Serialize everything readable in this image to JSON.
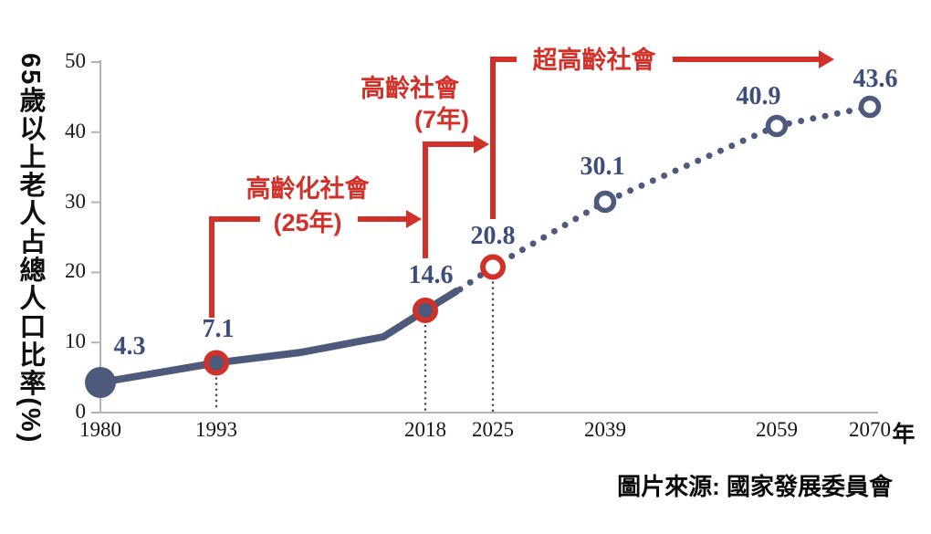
{
  "chart_data": {
    "type": "line",
    "x": [
      1980,
      1993,
      2018,
      2025,
      2039,
      2059,
      2070
    ],
    "values": [
      4.3,
      7.1,
      14.6,
      20.8,
      30.1,
      40.9,
      43.6
    ],
    "xlabel": "年",
    "ylabel": "65歲以上老人占總人口比率(%)",
    "ylim": [
      0,
      50
    ],
    "yticks": [
      0,
      10,
      20,
      30,
      40,
      50
    ],
    "grid": false,
    "legend": "none",
    "line_style": "solid through 2018, dotted (projection) after 2018",
    "point_styles": [
      "filled-blue",
      "blue-red-ring",
      "blue-red-ring",
      "open-red-ring",
      "open-blue-ring",
      "open-blue-ring",
      "open-blue-ring"
    ],
    "leader_line_years": [
      1993,
      2018,
      2025
    ],
    "annotations": [
      {
        "label": "高齡化社會",
        "sublabel": "(25年)",
        "from_year": 1993,
        "to_year": 2018
      },
      {
        "label": "高齡社會",
        "sublabel": "(7年)",
        "from_year": 2018,
        "to_year": 2025
      },
      {
        "label": "超高齡社會",
        "sublabel": "",
        "from_year": 2025,
        "to_year": null
      }
    ],
    "colors": {
      "line_blue": "#4d5a7c",
      "label_blue": "#3e4e7a",
      "annotation_red": "#d23129",
      "axis_gray": "#b2b2b2",
      "leader_gray": "#4a4a4a",
      "text_black": "#171717"
    }
  },
  "source_note": "圖片來源: 國家發展委員會"
}
